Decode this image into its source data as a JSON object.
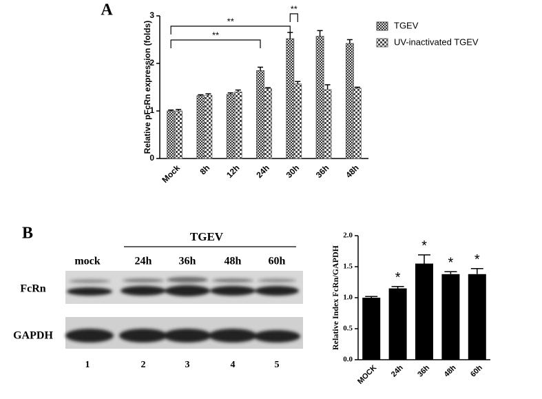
{
  "panel_labels": [
    "A",
    "B"
  ],
  "chart_data": [
    {
      "type": "grouped_bar",
      "ylabel": "Relative pFcRn expression (folds)",
      "categories": [
        "Mock",
        "8h",
        "12h",
        "24h",
        "30h",
        "36h",
        "48h"
      ],
      "series": [
        {
          "name": "TGEV",
          "color": "#4a4a4a",
          "values": [
            1.0,
            1.32,
            1.35,
            1.85,
            2.52,
            2.57,
            2.42
          ],
          "errors": [
            0.02,
            0.02,
            0.03,
            0.07,
            0.13,
            0.12,
            0.08
          ]
        },
        {
          "name": "UV-inactivated TGEV",
          "color": "#6a6a6a",
          "values": [
            1.0,
            1.33,
            1.4,
            1.47,
            1.57,
            1.45,
            1.48
          ],
          "errors": [
            0.03,
            0.03,
            0.04,
            0.02,
            0.05,
            0.1,
            0.02
          ]
        }
      ],
      "ylim": [
        0,
        3
      ],
      "yticks": [
        0,
        1,
        2,
        3
      ],
      "annotations": [
        "**",
        "**",
        "**"
      ],
      "legend": "top-right"
    },
    {
      "type": "bar",
      "ylabel": "Relative Index FcRn/GAPDH",
      "categories": [
        "MOCK",
        "24h",
        "36h",
        "48h",
        "60h"
      ],
      "values": [
        1.0,
        1.15,
        1.55,
        1.38,
        1.38
      ],
      "errors": [
        0.02,
        0.03,
        0.14,
        0.04,
        0.09
      ],
      "color": "#000000",
      "ylim": [
        0,
        2
      ],
      "yticks": [
        {
          "value": 0,
          "label": "0.0"
        },
        {
          "value": 0.5,
          "label": "0.5"
        },
        {
          "value": 1,
          "label": "1.0"
        },
        {
          "value": 1.5,
          "label": "1.5"
        },
        {
          "value": 2,
          "label": "2.0"
        }
      ],
      "annotations": [
        null,
        "*",
        "*",
        "*",
        "*"
      ]
    }
  ],
  "blot": {
    "group": "TGEV",
    "lanes": [
      "mock",
      "24h",
      "36h",
      "48h",
      "60h"
    ],
    "rows": [
      "FcRn",
      "GAPDH"
    ],
    "lane_numbers": [
      "1",
      "2",
      "3",
      "4",
      "5"
    ]
  }
}
